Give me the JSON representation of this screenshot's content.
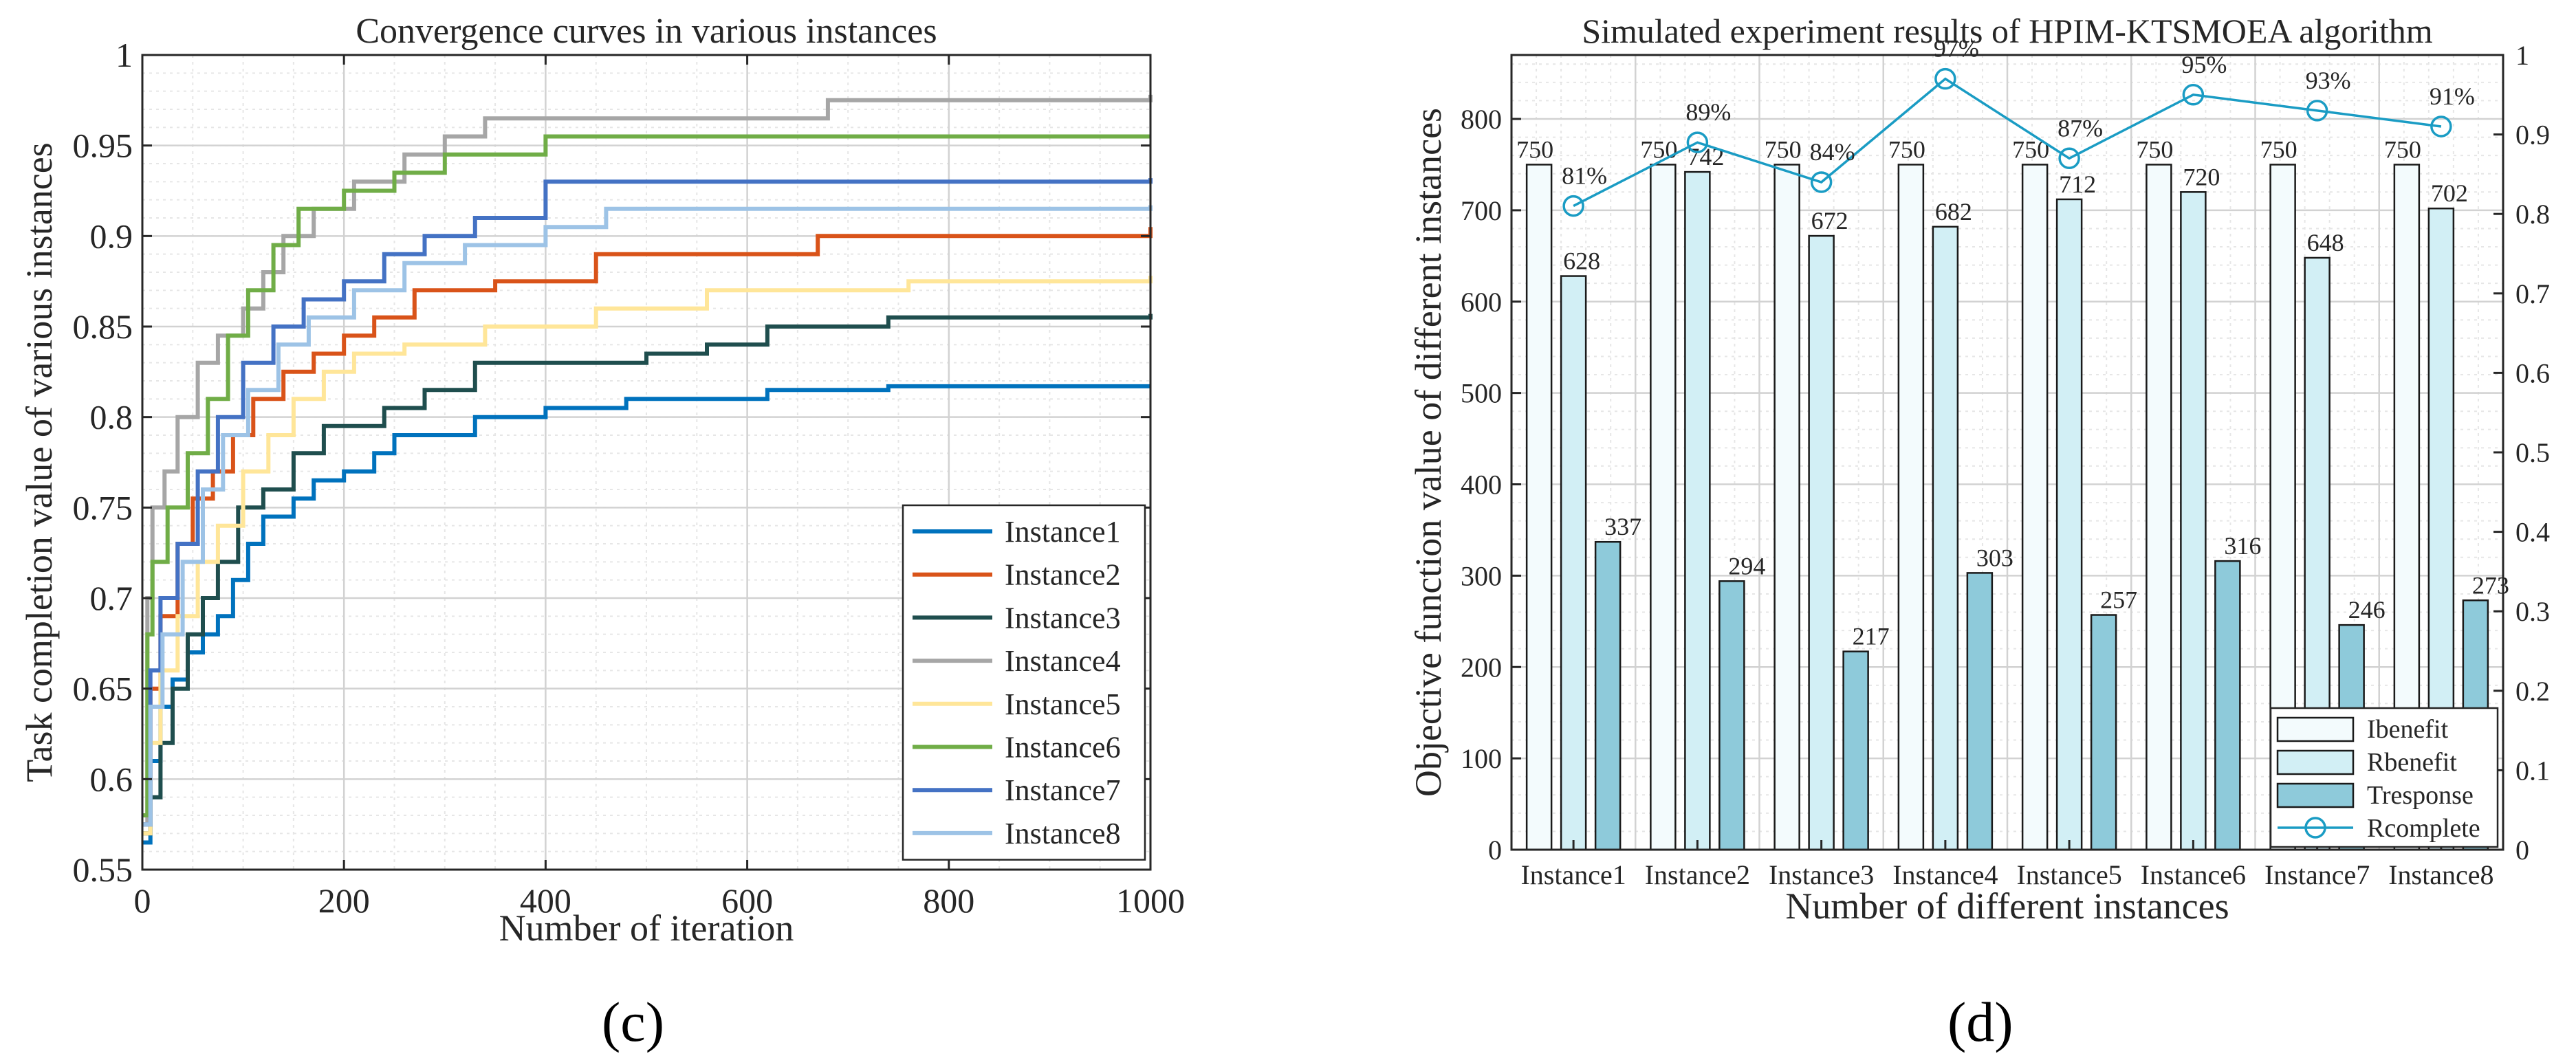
{
  "panel_labels": {
    "c": "(c)",
    "d": "(d)"
  },
  "chart_data": [
    {
      "id": "c",
      "type": "line",
      "title": "Convergence curves in various instances",
      "xlabel": "Number of iteration",
      "ylabel": "Task completion value of various instances",
      "xlim": [
        0,
        1000
      ],
      "ylim": [
        0.55,
        1
      ],
      "xticks": [
        0,
        200,
        400,
        600,
        800,
        1000
      ],
      "yticks": [
        0.55,
        0.6,
        0.65,
        0.7,
        0.75,
        0.8,
        0.85,
        0.9,
        0.95,
        1
      ],
      "ytick_labels": [
        "0.55",
        "0.6",
        "0.65",
        "0.7",
        "0.75",
        "0.8",
        "0.85",
        "0.9",
        "0.95",
        "1"
      ],
      "grid": true,
      "minor_grid": true,
      "legend_position": "bottom-right",
      "series": [
        {
          "name": "Instance1",
          "color": "#0072BD",
          "points": [
            [
              0,
              0.565
            ],
            [
              8,
              0.61
            ],
            [
              18,
              0.64
            ],
            [
              30,
              0.655
            ],
            [
              45,
              0.67
            ],
            [
              60,
              0.68
            ],
            [
              75,
              0.69
            ],
            [
              90,
              0.71
            ],
            [
              105,
              0.73
            ],
            [
              120,
              0.745
            ],
            [
              150,
              0.755
            ],
            [
              170,
              0.765
            ],
            [
              200,
              0.77
            ],
            [
              230,
              0.78
            ],
            [
              250,
              0.79
            ],
            [
              330,
              0.8
            ],
            [
              400,
              0.805
            ],
            [
              480,
              0.81
            ],
            [
              620,
              0.815
            ],
            [
              740,
              0.817
            ],
            [
              1000,
              0.817
            ]
          ]
        },
        {
          "name": "Instance2",
          "color": "#D95319",
          "points": [
            [
              0,
              0.575
            ],
            [
              8,
              0.65
            ],
            [
              18,
              0.69
            ],
            [
              35,
              0.73
            ],
            [
              50,
              0.755
            ],
            [
              70,
              0.77
            ],
            [
              90,
              0.79
            ],
            [
              110,
              0.81
            ],
            [
              140,
              0.825
            ],
            [
              170,
              0.835
            ],
            [
              200,
              0.845
            ],
            [
              230,
              0.855
            ],
            [
              270,
              0.87
            ],
            [
              350,
              0.875
            ],
            [
              450,
              0.89
            ],
            [
              550,
              0.89
            ],
            [
              670,
              0.9
            ],
            [
              1000,
              0.905
            ]
          ]
        },
        {
          "name": "Instance3",
          "color": "#1F4E4E",
          "points": [
            [
              0,
              0.57
            ],
            [
              8,
              0.59
            ],
            [
              18,
              0.62
            ],
            [
              30,
              0.65
            ],
            [
              45,
              0.68
            ],
            [
              60,
              0.7
            ],
            [
              75,
              0.72
            ],
            [
              95,
              0.75
            ],
            [
              120,
              0.76
            ],
            [
              150,
              0.78
            ],
            [
              180,
              0.795
            ],
            [
              240,
              0.805
            ],
            [
              280,
              0.815
            ],
            [
              330,
              0.83
            ],
            [
              440,
              0.83
            ],
            [
              500,
              0.835
            ],
            [
              560,
              0.84
            ],
            [
              620,
              0.85
            ],
            [
              740,
              0.855
            ],
            [
              1000,
              0.857
            ]
          ]
        },
        {
          "name": "Instance4",
          "color": "#A6A6A6",
          "points": [
            [
              0,
              0.575
            ],
            [
              5,
              0.7
            ],
            [
              10,
              0.75
            ],
            [
              22,
              0.77
            ],
            [
              35,
              0.8
            ],
            [
              55,
              0.83
            ],
            [
              75,
              0.845
            ],
            [
              100,
              0.86
            ],
            [
              120,
              0.88
            ],
            [
              140,
              0.9
            ],
            [
              170,
              0.915
            ],
            [
              210,
              0.93
            ],
            [
              260,
              0.945
            ],
            [
              300,
              0.955
            ],
            [
              340,
              0.965
            ],
            [
              500,
              0.965
            ],
            [
              680,
              0.975
            ],
            [
              1000,
              0.978
            ]
          ]
        },
        {
          "name": "Instance5",
          "color": "#FFE699",
          "points": [
            [
              0,
              0.57
            ],
            [
              8,
              0.62
            ],
            [
              18,
              0.66
            ],
            [
              35,
              0.69
            ],
            [
              55,
              0.72
            ],
            [
              75,
              0.74
            ],
            [
              100,
              0.77
            ],
            [
              125,
              0.79
            ],
            [
              150,
              0.81
            ],
            [
              180,
              0.825
            ],
            [
              210,
              0.835
            ],
            [
              260,
              0.84
            ],
            [
              340,
              0.85
            ],
            [
              450,
              0.86
            ],
            [
              560,
              0.87
            ],
            [
              760,
              0.875
            ],
            [
              1000,
              0.878
            ]
          ]
        },
        {
          "name": "Instance6",
          "color": "#70AD47",
          "points": [
            [
              0,
              0.58
            ],
            [
              5,
              0.68
            ],
            [
              10,
              0.72
            ],
            [
              25,
              0.75
            ],
            [
              45,
              0.78
            ],
            [
              65,
              0.81
            ],
            [
              85,
              0.845
            ],
            [
              105,
              0.87
            ],
            [
              130,
              0.895
            ],
            [
              155,
              0.915
            ],
            [
              200,
              0.925
            ],
            [
              250,
              0.935
            ],
            [
              300,
              0.945
            ],
            [
              400,
              0.955
            ],
            [
              1000,
              0.955
            ]
          ]
        },
        {
          "name": "Instance7",
          "color": "#4472C4",
          "points": [
            [
              0,
              0.575
            ],
            [
              8,
              0.66
            ],
            [
              18,
              0.7
            ],
            [
              35,
              0.73
            ],
            [
              55,
              0.77
            ],
            [
              75,
              0.8
            ],
            [
              100,
              0.83
            ],
            [
              130,
              0.85
            ],
            [
              160,
              0.865
            ],
            [
              200,
              0.875
            ],
            [
              240,
              0.89
            ],
            [
              280,
              0.9
            ],
            [
              330,
              0.91
            ],
            [
              400,
              0.93
            ],
            [
              1000,
              0.932
            ]
          ]
        },
        {
          "name": "Instance8",
          "color": "#9DC3E6",
          "points": [
            [
              0,
              0.575
            ],
            [
              8,
              0.64
            ],
            [
              20,
              0.68
            ],
            [
              40,
              0.72
            ],
            [
              60,
              0.76
            ],
            [
              80,
              0.79
            ],
            [
              105,
              0.815
            ],
            [
              135,
              0.84
            ],
            [
              165,
              0.855
            ],
            [
              210,
              0.87
            ],
            [
              260,
              0.885
            ],
            [
              320,
              0.895
            ],
            [
              400,
              0.905
            ],
            [
              460,
              0.915
            ],
            [
              1000,
              0.917
            ]
          ]
        }
      ]
    },
    {
      "id": "d",
      "type": "bar",
      "title": "Simulated experiment results of HPIM-KTSMOEA algorithm",
      "xlabel": "Number of different instances",
      "ylabel": "Objective function value of different instances",
      "categories": [
        "Instance1",
        "Instance2",
        "Instance3",
        "Instance4",
        "Instance5",
        "Instance6",
        "Instance7",
        "Instance8"
      ],
      "ylim": [
        0,
        870
      ],
      "yticks": [
        0,
        100,
        200,
        300,
        400,
        500,
        600,
        700,
        800
      ],
      "y2lim": [
        0,
        1
      ],
      "y2ticks": [
        0,
        0.1,
        0.2,
        0.3,
        0.4,
        0.5,
        0.6,
        0.7,
        0.8,
        0.9,
        1
      ],
      "y2tick_labels": [
        "0",
        "0.1",
        "0.2",
        "0.3",
        "0.4",
        "0.5",
        "0.6",
        "0.7",
        "0.8",
        "0.9",
        "1"
      ],
      "grid": true,
      "minor_grid": true,
      "legend_position": "bottom-right",
      "series": [
        {
          "name": "Ibenefit",
          "color": "#F3FBFD",
          "values": [
            750,
            750,
            750,
            750,
            750,
            750,
            750,
            750
          ],
          "labels": [
            "750",
            "750",
            "750",
            "750",
            "750",
            "750",
            "750",
            "750"
          ]
        },
        {
          "name": "Rbenefit",
          "color": "#D2EFF5",
          "values": [
            628,
            742,
            672,
            682,
            712,
            720,
            648,
            702
          ],
          "labels": [
            "628",
            "742",
            "672",
            "682",
            "712",
            "720",
            "648",
            "702"
          ]
        },
        {
          "name": "Tresponse",
          "color": "#8ECADA",
          "values": [
            337,
            294,
            217,
            303,
            257,
            316,
            246,
            273
          ],
          "labels": [
            "337",
            "294",
            "217",
            "303",
            "257",
            "316",
            "246",
            "273"
          ]
        }
      ],
      "line_series": {
        "name": "Rcomplete",
        "axis": "right",
        "color": "#1A9CC4",
        "values": [
          0.81,
          0.89,
          0.84,
          0.97,
          0.87,
          0.95,
          0.93,
          0.91
        ],
        "labels": [
          "81%",
          "89%",
          "84%",
          "97%",
          "87%",
          "95%",
          "93%",
          "91%"
        ]
      }
    }
  ]
}
